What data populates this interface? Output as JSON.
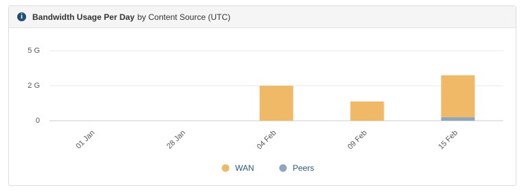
{
  "chart_data": {
    "type": "bar",
    "stacked": true,
    "title": "Bandwidth Usage Per Day",
    "subtitle": "by Content Source (UTC)",
    "categories": [
      "01 Jan",
      "28 Jan",
      "04 Feb",
      "09 Feb",
      "15 Feb"
    ],
    "series": [
      {
        "name": "WAN",
        "color": "#f0b967",
        "values": [
          null,
          null,
          2,
          1.1,
          2.7
        ]
      },
      {
        "name": "Peers",
        "color": "#8fa7bd",
        "values": [
          null,
          null,
          null,
          null,
          0.2
        ]
      }
    ],
    "ylim": [
      0,
      5
    ],
    "yticks": [
      0,
      {
        "value": 2,
        "label": "2 G"
      },
      {
        "value": 5,
        "label": "5 G"
      }
    ],
    "grid": true
  }
}
